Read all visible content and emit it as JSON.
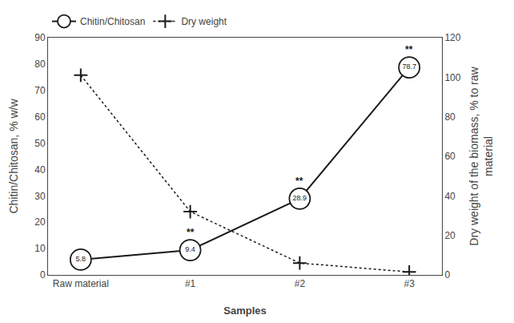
{
  "chart_data": {
    "type": "line",
    "categories": [
      "Raw material",
      "#1",
      "#2",
      "#3"
    ],
    "series": [
      {
        "name": "Chitin/Chitosan",
        "color": "#1a1a1a",
        "marker": "circle",
        "line_style": "solid",
        "axis": "y",
        "values": [
          5.8,
          9.4,
          28.9,
          78.7
        ],
        "data_labels": true,
        "value_labels": [
          "5.8",
          "9.4",
          "28.9",
          "78.7"
        ]
      },
      {
        "name": "Dry weight",
        "color": "#1a1a1a",
        "marker": "plus",
        "line_style": "dotted",
        "axis": "y2",
        "values": [
          101,
          32,
          6,
          1.5
        ]
      }
    ],
    "annotations": [
      {
        "category": "#1",
        "text": "**"
      },
      {
        "category": "#2",
        "text": "**"
      },
      {
        "category": "#3",
        "text": "**"
      }
    ],
    "xlabel": "Samples",
    "ylabel": "Chitin/Chitosan, % w/w",
    "y2label": "Dry weight of the biomass, % to raw\nmaterial",
    "ylim": [
      0,
      90
    ],
    "yticks": [
      0,
      10,
      20,
      30,
      40,
      50,
      60,
      70,
      80,
      90
    ],
    "y2lim": [
      0,
      120
    ],
    "y2ticks": [
      0,
      20,
      40,
      60,
      80,
      100,
      120
    ],
    "grid": false,
    "legend": "upper left"
  }
}
